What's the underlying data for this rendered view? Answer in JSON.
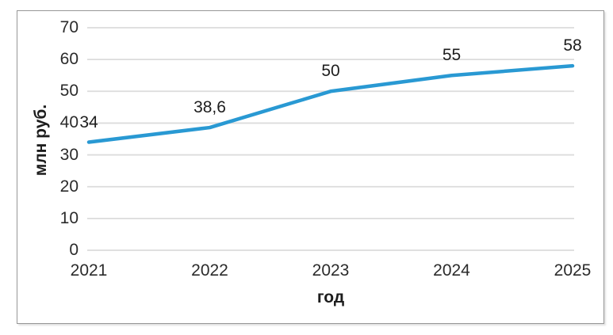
{
  "chart_data": {
    "type": "line",
    "categories": [
      "2021",
      "2022",
      "2023",
      "2024",
      "2025"
    ],
    "series": [
      {
        "values": [
          34,
          38.6,
          50,
          55,
          58
        ],
        "data_labels": [
          "34",
          "38,6",
          "50",
          "55",
          "58"
        ],
        "color": "#2999d3"
      }
    ],
    "title": "",
    "xlabel": "год",
    "ylabel": "млн руб.",
    "ylim": [
      0,
      70
    ],
    "yticks": [
      0,
      10,
      20,
      30,
      40,
      50,
      60,
      70
    ],
    "grid": true,
    "legend_position": "none"
  },
  "colors": {
    "line": "#2999d3",
    "gridline": "#dcdcdc",
    "frame_border": "#979797",
    "tick_text": "#2b2b2b",
    "label_text": "#1d1d1d",
    "background": "#ffffff"
  }
}
